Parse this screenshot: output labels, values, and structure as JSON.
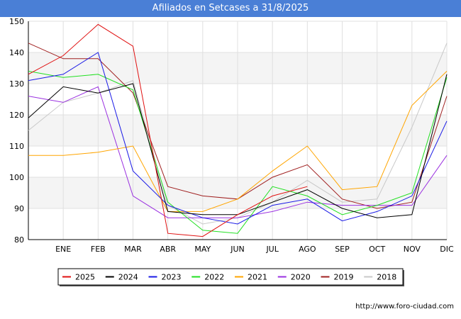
{
  "title": "Afiliados en Setcases a 31/8/2025",
  "footer": "http://www.foro-ciudad.com",
  "chart_data": {
    "type": "line",
    "categories": [
      "",
      "ENE",
      "FEB",
      "MAR",
      "ABR",
      "MAY",
      "JUN",
      "JUL",
      "AGO",
      "SEP",
      "OCT",
      "NOV",
      "DIC"
    ],
    "ylim": [
      80,
      150
    ],
    "yticks": [
      80,
      90,
      100,
      110,
      120,
      130,
      140,
      150
    ],
    "grid": true,
    "legend_position": "bottom",
    "series": [
      {
        "name": "2018",
        "color": "#c8c8c8",
        "values": [
          115,
          124,
          127,
          131,
          91,
          85,
          87,
          92,
          99,
          92,
          93,
          116,
          143
        ]
      },
      {
        "name": "2019",
        "color": "#a02020",
        "values": [
          143,
          138,
          138,
          127,
          97,
          94,
          93,
          100,
          104,
          93,
          90,
          92,
          126
        ]
      },
      {
        "name": "2020",
        "color": "#9a30e0",
        "values": [
          126,
          124,
          129,
          94,
          87,
          87,
          87,
          89,
          92,
          91,
          91,
          91,
          107
        ]
      },
      {
        "name": "2021",
        "color": "#ffa500",
        "values": [
          107,
          107,
          108,
          110,
          89,
          89,
          93,
          102,
          110,
          96,
          97,
          123,
          134
        ]
      },
      {
        "name": "2022",
        "color": "#22e022",
        "values": [
          134,
          132,
          133,
          128,
          92,
          83,
          82,
          97,
          94,
          88,
          91,
          95,
          132
        ]
      },
      {
        "name": "2023",
        "color": "#1a1ae6",
        "values": [
          131,
          133,
          140,
          102,
          91,
          87,
          85,
          91,
          93,
          86,
          89,
          94,
          118
        ]
      },
      {
        "name": "2024",
        "color": "#000000",
        "values": [
          119,
          129,
          127,
          130,
          89,
          88,
          88,
          92,
          96,
          90,
          87,
          88,
          133
        ]
      },
      {
        "name": "2025",
        "color": "#e01010",
        "values": [
          133,
          139,
          149,
          142,
          82,
          81,
          88,
          94,
          97,
          null,
          null,
          null,
          null
        ]
      }
    ],
    "legend_order": [
      "2025",
      "2024",
      "2023",
      "2022",
      "2021",
      "2020",
      "2019",
      "2018"
    ]
  }
}
